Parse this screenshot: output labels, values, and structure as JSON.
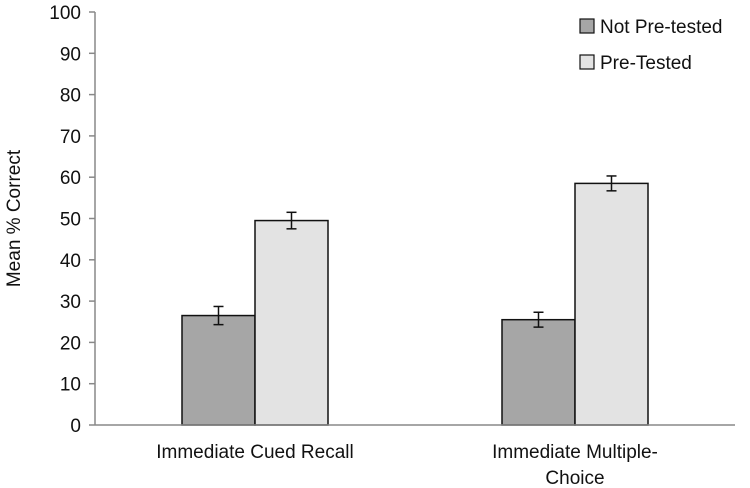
{
  "chart_data": {
    "type": "bar",
    "ylabel": "Mean % Correct",
    "ylim": [
      0,
      100
    ],
    "yticks": [
      0,
      10,
      20,
      30,
      40,
      50,
      60,
      70,
      80,
      90,
      100
    ],
    "categories": [
      [
        "Immediate Cued Recall"
      ],
      [
        "Immediate Multiple-",
        "Choice"
      ]
    ],
    "series": [
      {
        "name": "Not Pre-tested",
        "color": "#a6a6a6",
        "values": [
          26.5,
          25.5
        ],
        "errors": [
          2.2,
          1.8
        ]
      },
      {
        "name": "Pre-Tested",
        "color": "#e3e3e3",
        "values": [
          49.5,
          58.5
        ],
        "errors": [
          2.0,
          1.8
        ]
      }
    ],
    "legend": "top-right",
    "grid": false
  }
}
